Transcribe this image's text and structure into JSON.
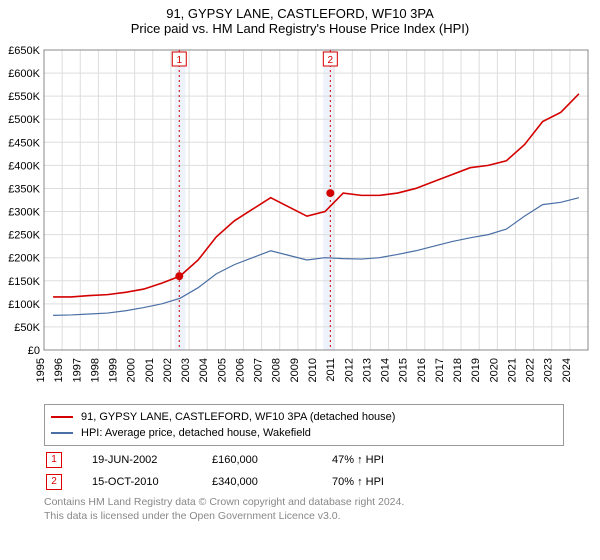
{
  "title": {
    "main": "91, GYPSY LANE, CASTLEFORD, WF10 3PA",
    "sub": "Price paid vs. HM Land Registry's House Price Index (HPI)"
  },
  "chart": {
    "type": "line",
    "background_color": "#ffffff",
    "plot_border_color": "#888888",
    "grid_color": "#dddddd",
    "x_years": [
      1995,
      1996,
      1997,
      1998,
      1999,
      2000,
      2001,
      2002,
      2003,
      2004,
      2005,
      2006,
      2007,
      2008,
      2009,
      2010,
      2011,
      2012,
      2013,
      2014,
      2015,
      2016,
      2017,
      2018,
      2019,
      2020,
      2021,
      2022,
      2023,
      2024
    ],
    "y_ticks": [
      0,
      50000,
      100000,
      150000,
      200000,
      250000,
      300000,
      350000,
      400000,
      450000,
      500000,
      550000,
      600000,
      650000
    ],
    "y_tick_labels": [
      "£0",
      "£50K",
      "£100K",
      "£150K",
      "£200K",
      "£250K",
      "£300K",
      "£350K",
      "£400K",
      "£450K",
      "£500K",
      "£550K",
      "£600K",
      "£650K"
    ],
    "ylim": [
      0,
      650000
    ],
    "series": [
      {
        "name": "price_paid",
        "label": "91, GYPSY LANE, CASTLEFORD, WF10 3PA (detached house)",
        "color": "#d40000",
        "line_width": 1.6,
        "values": [
          115000,
          115000,
          118000,
          120000,
          125000,
          132000,
          145000,
          160000,
          195000,
          245000,
          280000,
          305000,
          330000,
          310000,
          290000,
          300000,
          340000,
          335000,
          335000,
          340000,
          350000,
          365000,
          380000,
          395000,
          400000,
          410000,
          445000,
          495000,
          515000,
          555000
        ]
      },
      {
        "name": "hpi",
        "label": "HPI: Average price, detached house, Wakefield",
        "color": "#4a6fa5",
        "line_width": 1.2,
        "values": [
          75000,
          76000,
          78000,
          80000,
          85000,
          92000,
          100000,
          112000,
          135000,
          165000,
          185000,
          200000,
          215000,
          205000,
          195000,
          200000,
          198000,
          197000,
          200000,
          207000,
          215000,
          225000,
          235000,
          243000,
          250000,
          262000,
          290000,
          315000,
          320000,
          330000
        ]
      }
    ],
    "shaded_bands": [
      {
        "x_start_year": 2002.2,
        "x_end_year": 2002.8,
        "fill": "#eef2fa"
      },
      {
        "x_start_year": 2010.4,
        "x_end_year": 2011.0,
        "fill": "#eef2fa"
      }
    ],
    "vlines": [
      {
        "x_year": 2002.46,
        "color": "#d40000",
        "dash": "2,3"
      },
      {
        "x_year": 2010.79,
        "color": "#d40000",
        "dash": "2,3"
      }
    ],
    "marker_points": [
      {
        "x_year": 2002.46,
        "y": 160000,
        "color": "#d40000"
      },
      {
        "x_year": 2010.79,
        "y": 340000,
        "color": "#d40000"
      }
    ],
    "marker_flags": [
      {
        "label": "1",
        "x_year": 2002.46,
        "border": "#d40000"
      },
      {
        "label": "2",
        "x_year": 2010.79,
        "border": "#d40000"
      }
    ]
  },
  "legend": {
    "series": [
      {
        "color": "#d40000",
        "label": "91, GYPSY LANE, CASTLEFORD, WF10 3PA (detached house)"
      },
      {
        "color": "#4a6fa5",
        "label": "HPI: Average price, detached house, Wakefield"
      }
    ],
    "markers": [
      {
        "num": "1",
        "date": "19-JUN-2002",
        "price": "£160,000",
        "delta": "47% ↑ HPI"
      },
      {
        "num": "2",
        "date": "15-OCT-2010",
        "price": "£340,000",
        "delta": "70% ↑ HPI"
      }
    ]
  },
  "footnote": {
    "l1": "Contains HM Land Registry data © Crown copyright and database right 2024.",
    "l2": "This data is licensed under the Open Government Licence v3.0."
  }
}
